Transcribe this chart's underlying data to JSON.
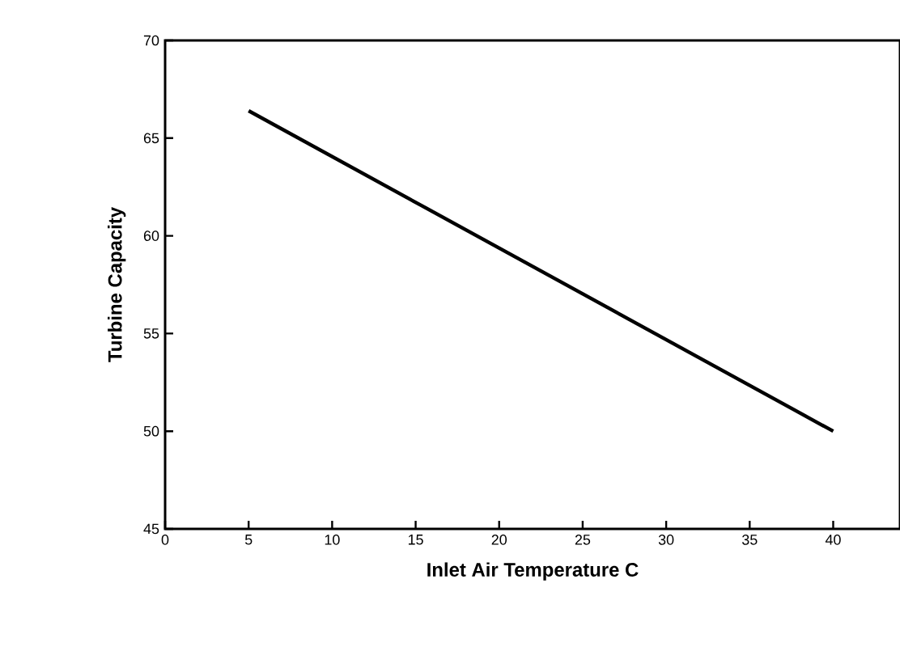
{
  "chart_data": {
    "type": "line",
    "xlabel": "Inlet Air Temperature C",
    "ylabel": "Turbine Capacity",
    "x": [
      5,
      40
    ],
    "series": [
      {
        "color": "#000000",
        "values": [
          66.4,
          50.0
        ]
      }
    ],
    "xlim": [
      0,
      44
    ],
    "xticks": [
      0,
      5,
      10,
      15,
      20,
      25,
      30,
      35,
      40
    ],
    "ylim": [
      45,
      70
    ],
    "yticks": [
      45,
      50,
      55,
      60,
      65,
      70
    ],
    "grid": false,
    "marker": "none",
    "line_style": "solid"
  }
}
